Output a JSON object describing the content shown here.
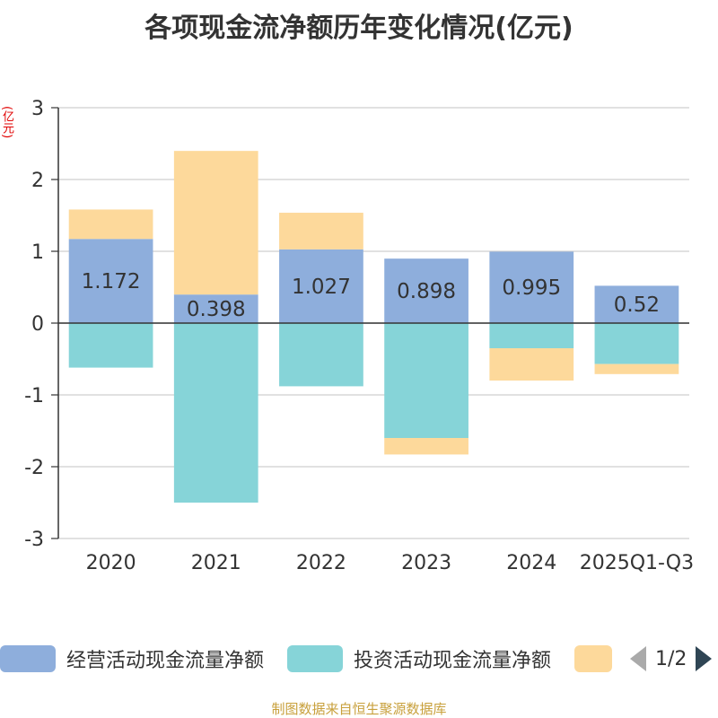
{
  "title": "各项现金流净额历年变化情况(亿元)",
  "y_unit": "(亿元)",
  "source": "制图数据来自恒生聚源数据库",
  "legend": {
    "items": [
      {
        "label": "经营活动现金流量净额",
        "color": "#8eaedc"
      },
      {
        "label": "投资活动现金流量净额",
        "color": "#86d4d8"
      },
      {
        "label": "",
        "color": "#fdd99b"
      }
    ],
    "page": "1/2"
  },
  "chart_data": {
    "type": "bar",
    "stacked": true,
    "categories": [
      "2020",
      "2021",
      "2022",
      "2023",
      "2024",
      "2025Q1-Q3"
    ],
    "ylim": [
      -3,
      3
    ],
    "yticks": [
      3,
      2,
      1,
      0,
      -1,
      -2,
      -3
    ],
    "grid": true,
    "series": [
      {
        "name": "经营活动现金流量净额",
        "color": "#8eaedc",
        "values": [
          1.172,
          0.398,
          1.027,
          0.898,
          0.995,
          0.52
        ],
        "labels": [
          "1.172",
          "0.398",
          "1.027",
          "0.898",
          "0.995",
          "0.52"
        ]
      },
      {
        "name": "投资活动现金流量净额",
        "color": "#86d4d8",
        "values": [
          -0.62,
          -2.5,
          -0.88,
          -1.6,
          -0.35,
          -0.57
        ]
      },
      {
        "name": "",
        "color": "#fdd99b",
        "values": [
          0.41,
          2.0,
          0.51,
          -0.23,
          -0.45,
          -0.14
        ]
      }
    ]
  }
}
